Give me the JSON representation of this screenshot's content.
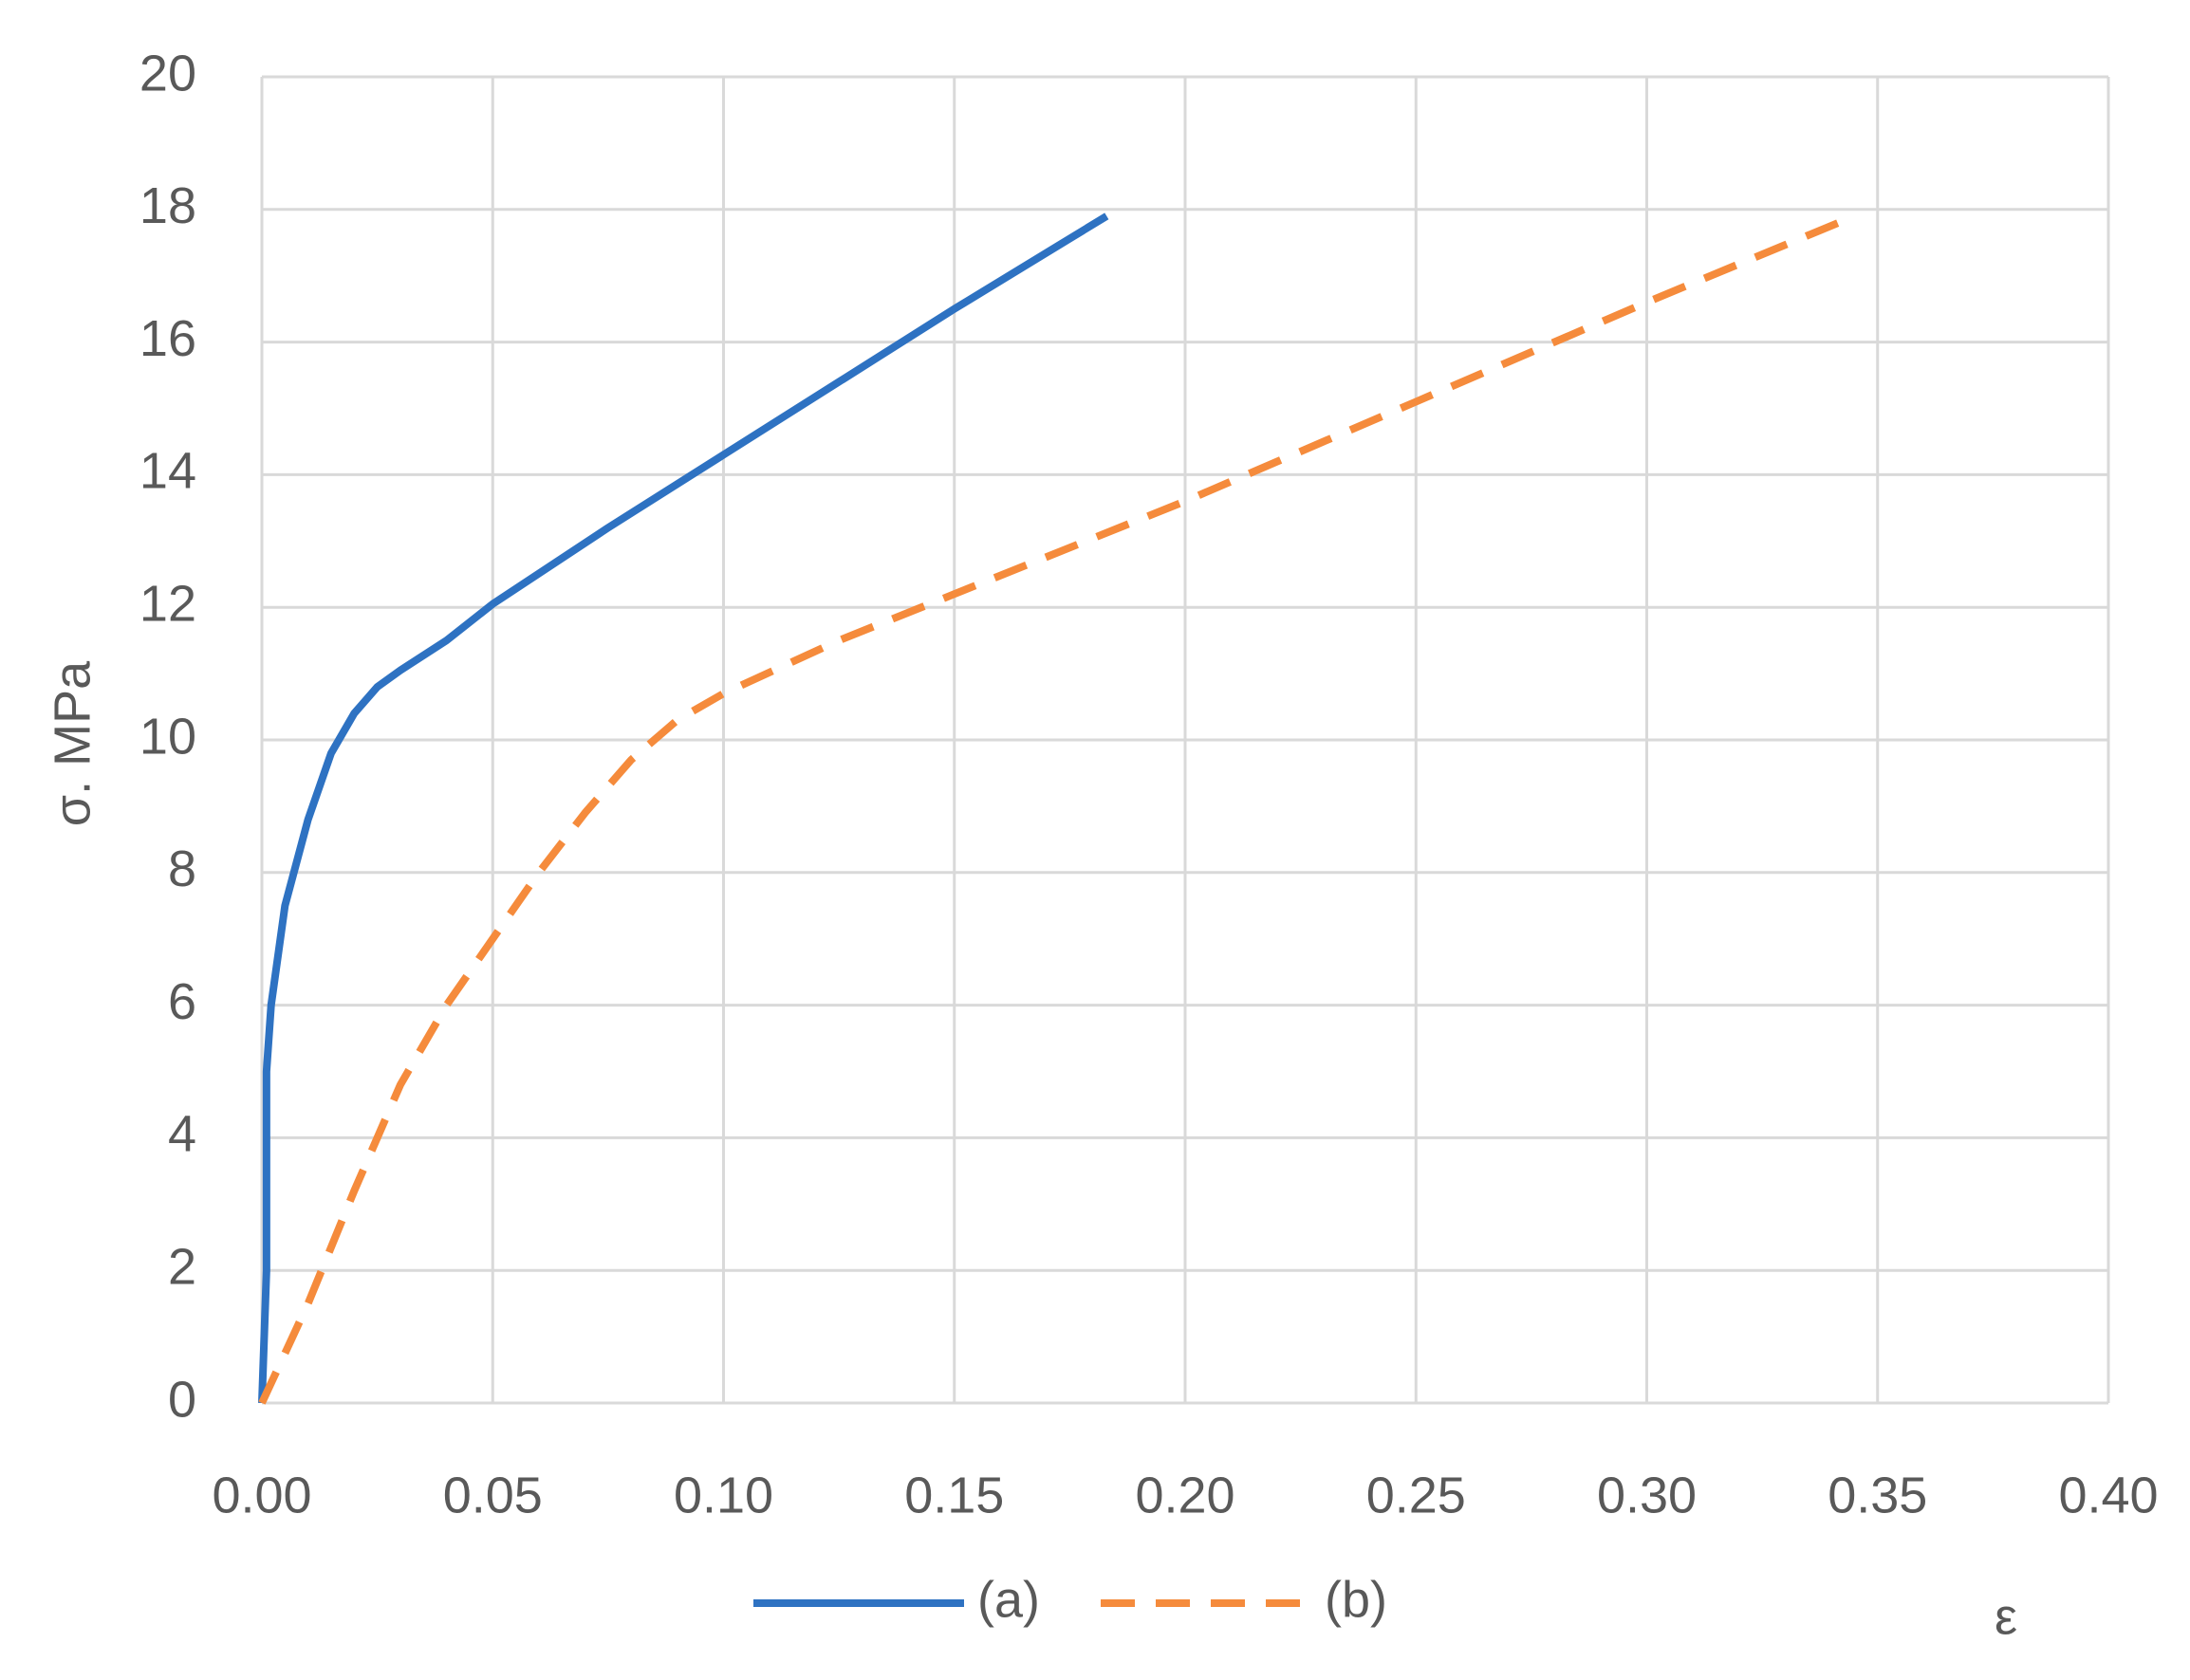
{
  "chart_data": {
    "type": "line",
    "y_label": "σ. MPa",
    "x_label": "ε",
    "xlim": [
      0,
      0.4
    ],
    "xticks": [
      {
        "value": 0,
        "label": "0.00"
      },
      {
        "value": 0.05,
        "label": "0.05"
      },
      {
        "value": 0.1,
        "label": "0.10"
      },
      {
        "value": 0.15,
        "label": "0.15"
      },
      {
        "value": 0.2,
        "label": "0.20"
      },
      {
        "value": 0.25,
        "label": "0.25"
      },
      {
        "value": 0.3,
        "label": "0.30"
      },
      {
        "value": 0.35,
        "label": "0.35"
      },
      {
        "value": 0.4,
        "label": "0.40"
      }
    ],
    "ylim": [
      0,
      20
    ],
    "yticks": [
      0,
      2,
      4,
      6,
      8,
      10,
      12,
      14,
      16,
      18,
      20
    ],
    "grid": true,
    "legend": "bottom",
    "series": [
      {
        "name": "(a)",
        "color": "#2e72c2",
        "dash": false,
        "x": [
          0,
          0.001,
          0.001,
          0.002,
          0.005,
          0.01,
          0.015,
          0.02,
          0.025,
          0.03,
          0.04,
          0.05,
          0.075,
          0.1,
          0.125,
          0.15,
          0.183
        ],
        "values": [
          0,
          2,
          5,
          6,
          7.5,
          8.8,
          9.8,
          10.4,
          10.8,
          11.05,
          11.5,
          12.05,
          13.2,
          14.3,
          15.4,
          16.5,
          17.9
        ]
      },
      {
        "name": "(b)",
        "color": "#f58b3c",
        "dash": true,
        "x": [
          0,
          0.01,
          0.02,
          0.03,
          0.04,
          0.05,
          0.06,
          0.07,
          0.08,
          0.09,
          0.1,
          0.125,
          0.15,
          0.175,
          0.2,
          0.25,
          0.3,
          0.345
        ],
        "values": [
          0,
          1.5,
          3.2,
          4.8,
          6.0,
          7.0,
          8.0,
          8.9,
          9.7,
          10.3,
          10.7,
          11.5,
          12.2,
          12.9,
          13.6,
          15.1,
          16.6,
          17.9
        ]
      }
    ]
  }
}
